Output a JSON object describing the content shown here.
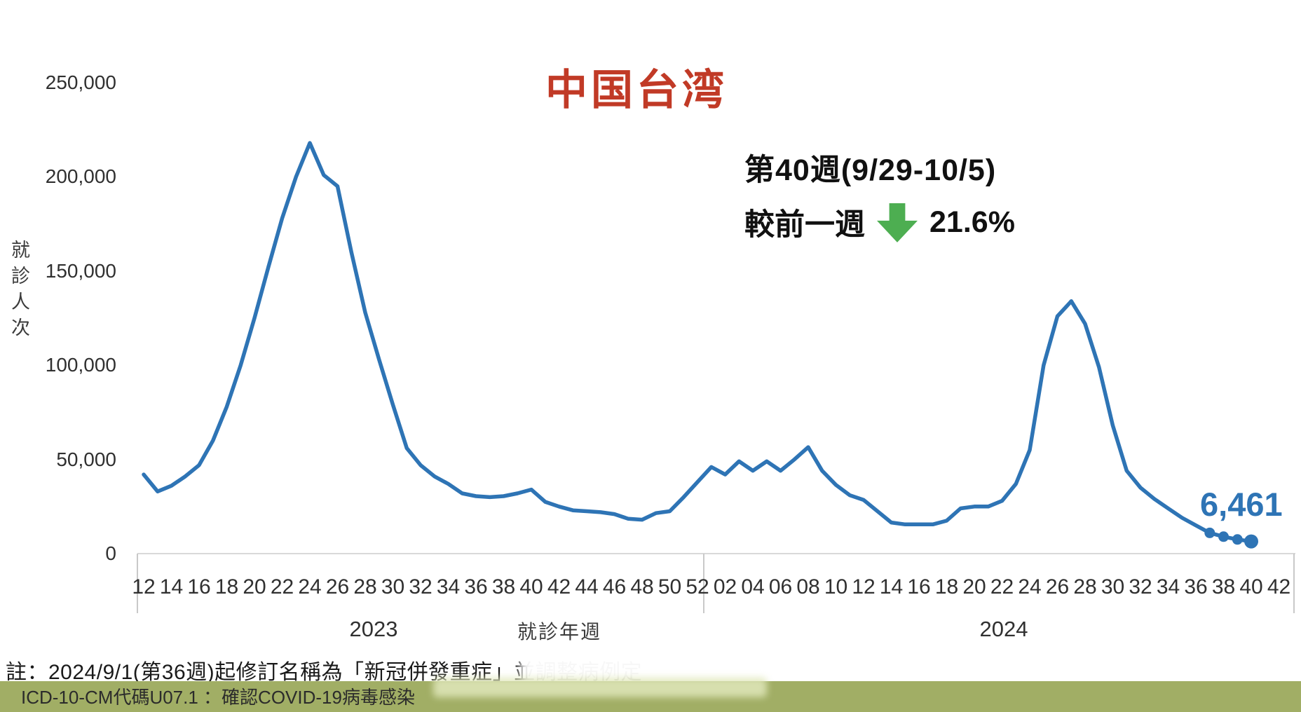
{
  "title": "中国台湾",
  "annotation": {
    "week_heading": "第40週(9/29-10/5)",
    "change_prefix": "較前一週",
    "arrow_icon": "down-block-arrow",
    "change_value": "21.6%"
  },
  "endpoint_label": "6,461",
  "colors": {
    "line_blue": "#2E74B5",
    "title_red": "#C13A26",
    "arrow_green": "#4DAE51",
    "axis_gray": "#D9D9D9",
    "separator_gray": "#C9C9C9",
    "bottom_bar_olive": "#A1AE65"
  },
  "footer": {
    "note": "註：2024/9/1(第36週)起修訂名稱為「新冠併發重症」並調整病例定",
    "bar_text": "ICD-10-CM代碼U07.1 ：確認COVID-19病毒感染"
  },
  "chart_data": {
    "type": "line",
    "title": "中国台湾",
    "ylabel": "就診人次",
    "xlabel": "就診年週",
    "ylim": [
      0,
      250000
    ],
    "grid": false,
    "legend": "none",
    "ytick_values": [
      0,
      50000,
      100000,
      150000,
      200000,
      250000
    ],
    "ytick_labels": [
      "0",
      "50,000",
      "100,000",
      "150,000",
      "200,000",
      "250,000"
    ],
    "x_groups": [
      {
        "year": "2023",
        "weeks": [
          "12",
          "14",
          "16",
          "18",
          "20",
          "22",
          "24",
          "26",
          "28",
          "30",
          "32",
          "34",
          "36",
          "38",
          "40",
          "42",
          "44",
          "46",
          "48",
          "50",
          "52"
        ]
      },
      {
        "year": "2024",
        "weeks": [
          "02",
          "04",
          "06",
          "08",
          "10",
          "12",
          "14",
          "16",
          "18",
          "20",
          "22",
          "24",
          "26",
          "28",
          "30",
          "32",
          "34",
          "36",
          "38",
          "40",
          "42"
        ]
      }
    ],
    "series": [
      {
        "name": "就診人次",
        "segments": [
          {
            "year": 2023,
            "start_week": 12,
            "values": [
              42000,
              33000,
              36000,
              41000,
              47000,
              60000,
              78000,
              100000,
              125000,
              152000,
              178000,
              200000,
              218000,
              201000,
              195000,
              160000,
              128000,
              103000,
              79000,
              56000,
              47000,
              41000,
              37000,
              32000,
              30500,
              30000,
              30500,
              32000,
              34000,
              27500,
              25000,
              23000,
              22500,
              22000,
              21000,
              18500,
              18000,
              21500,
              22500,
              30000,
              38000
            ]
          },
          {
            "year": 2024,
            "start_week": 1,
            "values": [
              46000,
              42000,
              49000,
              44000,
              49000,
              44000,
              50000,
              56500,
              44000,
              36500,
              31000,
              28500,
              22500,
              16500,
              15500,
              15500,
              15500,
              17500,
              24000,
              25000,
              25000,
              28000,
              37000,
              55000,
              100000,
              126000,
              134000,
              122000,
              99000,
              68000,
              44000,
              35000,
              29000,
              24000,
              19000,
              15000,
              11000,
              9000,
              7500,
              6461
            ]
          }
        ],
        "markers_on_last_points": 4,
        "last_value": 6461
      }
    ]
  }
}
